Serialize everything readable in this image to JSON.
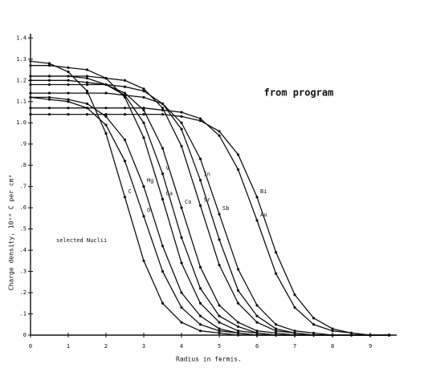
{
  "chart_data": {
    "type": "line",
    "annotation": "from program",
    "note": "selected Nuclii",
    "x_label": "Radius in fermis.",
    "y_label": "Charge density,  10¹⁹ C per cm³",
    "x": [
      0,
      0.5,
      1,
      1.5,
      2,
      2.5,
      3,
      3.5,
      4,
      4.5,
      5,
      5.5,
      6,
      6.5,
      7,
      7.5,
      8,
      8.5,
      9,
      9.5
    ],
    "series": [
      {
        "name": "C",
        "color": "#111111",
        "values": [
          1.29,
          1.28,
          1.24,
          1.15,
          0.95,
          0.65,
          0.35,
          0.15,
          0.06,
          0.02,
          0.01,
          0,
          0,
          0,
          0,
          0,
          0,
          0,
          0,
          0
        ]
      },
      {
        "name": "O",
        "color": "#111111",
        "values": [
          1.12,
          1.11,
          1.1,
          1.07,
          0.99,
          0.82,
          0.56,
          0.3,
          0.13,
          0.05,
          0.02,
          0.01,
          0,
          0,
          0,
          0,
          0,
          0,
          0,
          0
        ]
      },
      {
        "name": "Mg",
        "color": "#111111",
        "values": [
          1.12,
          1.12,
          1.11,
          1.09,
          1.03,
          0.92,
          0.7,
          0.42,
          0.2,
          0.09,
          0.03,
          0.01,
          0,
          0,
          0,
          0,
          0,
          0,
          0,
          0
        ]
      },
      {
        "name": "Ca",
        "color": "#111111",
        "values": [
          1.27,
          1.27,
          1.26,
          1.25,
          1.21,
          1.12,
          0.93,
          0.64,
          0.34,
          0.15,
          0.06,
          0.02,
          0.01,
          0,
          0,
          0,
          0,
          0,
          0,
          0
        ]
      },
      {
        "name": "V",
        "color": "#111111",
        "values": [
          1.22,
          1.22,
          1.22,
          1.21,
          1.18,
          1.13,
          1.0,
          0.76,
          0.46,
          0.22,
          0.09,
          0.04,
          0.01,
          0,
          0,
          0,
          0,
          0,
          0,
          0
        ]
      },
      {
        "name": "Co",
        "color": "#111111",
        "values": [
          1.2,
          1.2,
          1.2,
          1.19,
          1.18,
          1.14,
          1.06,
          0.88,
          0.6,
          0.32,
          0.14,
          0.06,
          0.02,
          0.01,
          0,
          0,
          0,
          0,
          0,
          0
        ]
      },
      {
        "name": "Sr",
        "color": "#111111",
        "values": [
          1.22,
          1.22,
          1.22,
          1.22,
          1.21,
          1.2,
          1.16,
          1.07,
          0.89,
          0.61,
          0.33,
          0.15,
          0.06,
          0.02,
          0.01,
          0,
          0,
          0,
          0,
          0
        ]
      },
      {
        "name": "In",
        "color": "#111111",
        "values": [
          1.18,
          1.18,
          1.18,
          1.18,
          1.18,
          1.17,
          1.15,
          1.09,
          0.97,
          0.73,
          0.45,
          0.21,
          0.09,
          0.03,
          0.01,
          0,
          0,
          0,
          0,
          0
        ]
      },
      {
        "name": "Sb",
        "color": "#111111",
        "values": [
          1.14,
          1.14,
          1.14,
          1.14,
          1.14,
          1.13,
          1.12,
          1.09,
          1.0,
          0.83,
          0.57,
          0.31,
          0.14,
          0.05,
          0.02,
          0.01,
          0,
          0,
          0,
          0
        ]
      },
      {
        "name": "Au",
        "color": "#111111",
        "values": [
          1.07,
          1.07,
          1.07,
          1.07,
          1.07,
          1.07,
          1.07,
          1.06,
          1.05,
          1.02,
          0.94,
          0.78,
          0.54,
          0.29,
          0.13,
          0.05,
          0.02,
          0.01,
          0,
          0
        ]
      },
      {
        "name": "Bi",
        "color": "#111111",
        "values": [
          1.04,
          1.04,
          1.04,
          1.04,
          1.04,
          1.04,
          1.04,
          1.04,
          1.03,
          1.01,
          0.96,
          0.85,
          0.65,
          0.39,
          0.19,
          0.08,
          0.03,
          0.01,
          0,
          0
        ]
      }
    ],
    "xlim": [
      0,
      9.7
    ],
    "ylim": [
      0,
      1.42
    ],
    "xticks": [
      0,
      1,
      2,
      3,
      4,
      5,
      6,
      7,
      8,
      9
    ],
    "yticks": [
      0,
      {
        "value": 0.1,
        "label": ".1"
      },
      {
        "value": 0.2,
        "label": ".2"
      },
      {
        "value": 0.3,
        "label": ".3"
      },
      {
        "value": 0.4,
        "label": ".4"
      },
      {
        "value": 0.5,
        "label": ".5"
      },
      {
        "value": 0.6,
        "label": ".6"
      },
      {
        "value": 0.7,
        "label": ".7"
      },
      {
        "value": 0.8,
        "label": ".8"
      },
      {
        "value": 0.9,
        "label": ".9"
      },
      {
        "value": 1.0,
        "label": "1.0"
      },
      1.1,
      1.2,
      1.3,
      1.4
    ],
    "grid": false
  }
}
